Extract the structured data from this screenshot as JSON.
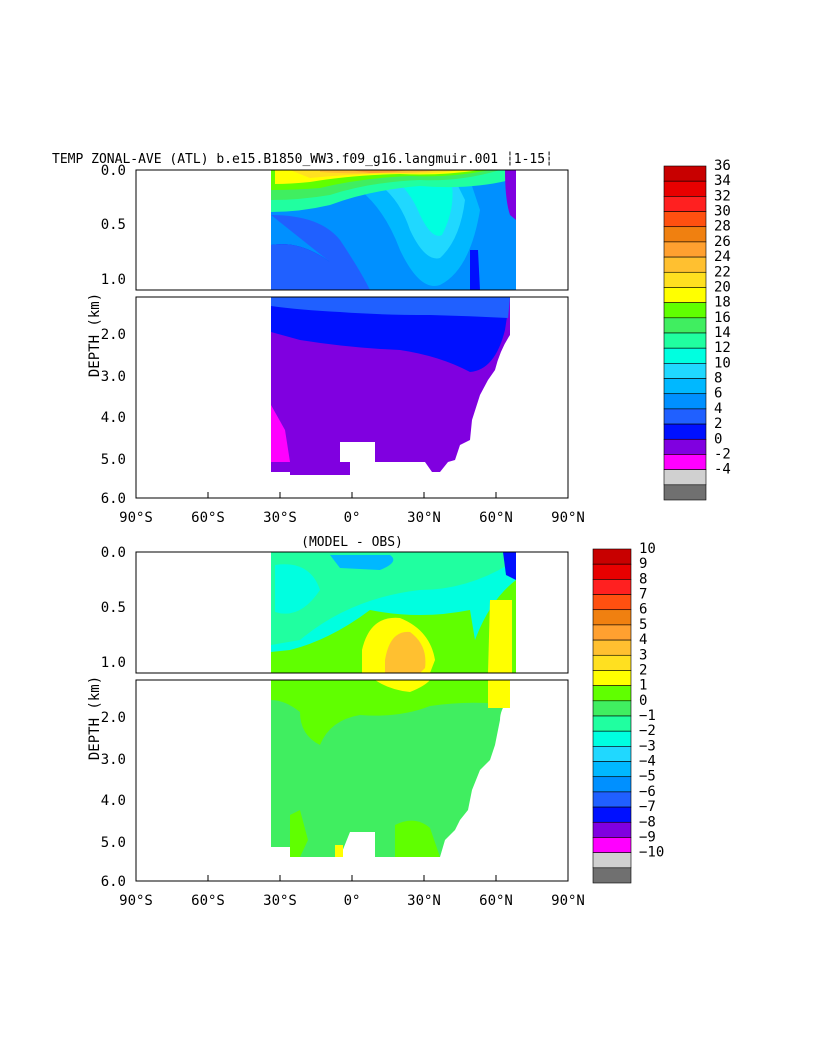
{
  "chart_data": [
    {
      "type": "heatmap",
      "title": "TEMP ZONAL-AVE (ATL) b.e15.B1850_WW3.f09_g16.langmuir.001 ┆1-15┆",
      "xlabel": "",
      "ylabel": "DEPTH (km)",
      "x_ticks": [
        "90°S",
        "60°S",
        "30°S",
        "0°",
        "30°N",
        "60°N",
        "90°N"
      ],
      "x_range": [
        -90,
        90
      ],
      "y_ticks_upper": [
        "0.0",
        "0.5",
        "1.0"
      ],
      "y_ticks_lower": [
        "2.0",
        "3.0",
        "4.0",
        "5.0",
        "6.0"
      ],
      "y_range_km": [
        0,
        6
      ],
      "colorbar_labels": [
        "36",
        "34",
        "32",
        "30",
        "28",
        "26",
        "24",
        "22",
        "20",
        "18",
        "16",
        "14",
        "12",
        "10",
        "8",
        "6",
        "4",
        "2",
        "0",
        "-2",
        "-4"
      ],
      "colorbar_colors": [
        "#c80000",
        "#e80000",
        "#ff2020",
        "#ff5010",
        "#f08010",
        "#ffa030",
        "#ffc030",
        "#ffe020",
        "#ffff00",
        "#60ff00",
        "#40ee60",
        "#20ffa0",
        "#00ffe0",
        "#20d8ff",
        "#00b8ff",
        "#0090ff",
        "#2060ff",
        "#0010ff",
        "#8000e0",
        "#ff00ff",
        "#d0d0d0",
        "#707070"
      ]
    },
    {
      "type": "heatmap",
      "title": "(MODEL - OBS)",
      "xlabel": "",
      "ylabel": "DEPTH (km)",
      "x_ticks": [
        "90°S",
        "60°S",
        "30°S",
        "0°",
        "30°N",
        "60°N",
        "90°N"
      ],
      "x_range": [
        -90,
        90
      ],
      "y_ticks_upper": [
        "0.0",
        "0.5",
        "1.0"
      ],
      "y_ticks_lower": [
        "2.0",
        "3.0",
        "4.0",
        "5.0",
        "6.0"
      ],
      "y_range_km": [
        0,
        6
      ],
      "colorbar_labels": [
        "10",
        "9",
        "8",
        "7",
        "6",
        "5",
        "4",
        "3",
        "2",
        "1",
        "0",
        "−1",
        "−2",
        "−3",
        "−4",
        "−5",
        "−6",
        "−7",
        "−8",
        "−9",
        "−10"
      ],
      "colorbar_colors": [
        "#c80000",
        "#e80000",
        "#ff2020",
        "#ff5010",
        "#f08010",
        "#ffa030",
        "#ffc030",
        "#ffe020",
        "#ffff00",
        "#60ff00",
        "#40ee60",
        "#20ffa0",
        "#00ffe0",
        "#20d8ff",
        "#00b8ff",
        "#0090ff",
        "#2060ff",
        "#0010ff",
        "#8000e0",
        "#ff00ff",
        "#d0d0d0",
        "#707070"
      ]
    }
  ]
}
